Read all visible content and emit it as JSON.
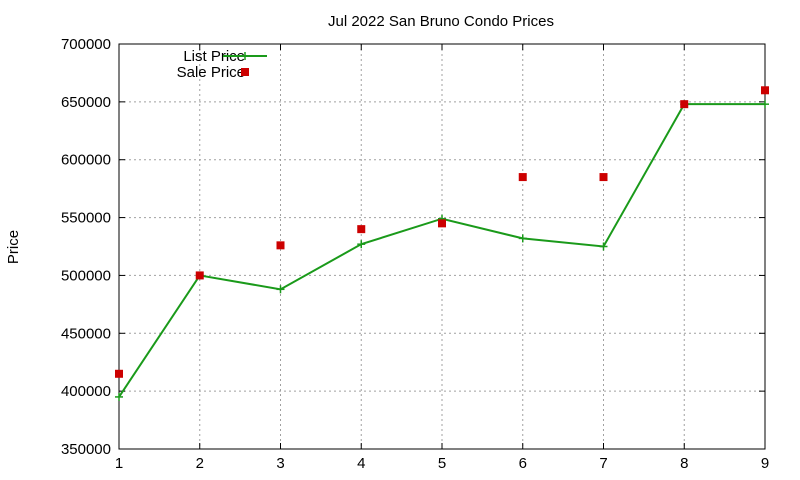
{
  "chart_data": {
    "type": "line",
    "title": "Jul 2022 San Bruno Condo Prices",
    "xlabel": "",
    "ylabel": "Price",
    "x": [
      1,
      2,
      3,
      4,
      5,
      6,
      7,
      8,
      9
    ],
    "xlim": [
      1,
      9
    ],
    "ylim": [
      350000,
      700000
    ],
    "yticks": [
      350000,
      400000,
      450000,
      500000,
      550000,
      600000,
      650000,
      700000
    ],
    "xticks": [
      1,
      2,
      3,
      4,
      5,
      6,
      7,
      8,
      9
    ],
    "grid": true,
    "legend_position": "top-left",
    "series": [
      {
        "name": "List Price",
        "style": "line-with-plus-markers",
        "color": "#1a9a1a",
        "values": [
          395000,
          500000,
          488000,
          527000,
          549000,
          532000,
          525000,
          648000,
          648000
        ]
      },
      {
        "name": "Sale Price",
        "style": "square-markers",
        "color": "#cc0000",
        "values": [
          415000,
          500000,
          526000,
          540000,
          545000,
          585000,
          585000,
          648000,
          660000
        ]
      }
    ]
  }
}
